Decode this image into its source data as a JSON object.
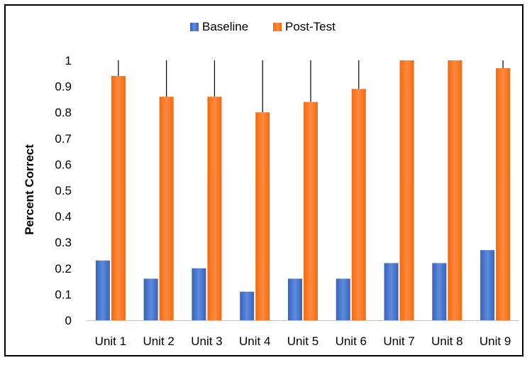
{
  "chart_data": {
    "type": "bar",
    "title": "",
    "xlabel": "",
    "ylabel": "Percent Correct",
    "ylim": [
      0,
      1
    ],
    "yticks": [
      "0",
      "0.1",
      "0.2",
      "0.3",
      "0.4",
      "0.5",
      "0.6",
      "0.7",
      "0.8",
      "0.9",
      "1"
    ],
    "grid": false,
    "legend_position": "top-center",
    "categories": [
      "Unit 1",
      "Unit 2",
      "Unit 3",
      "Unit 4",
      "Unit 5",
      "Unit 6",
      "Unit 7",
      "Unit 8",
      "Unit 9"
    ],
    "series": [
      {
        "name": "Baseline",
        "color": "#4472C4",
        "values": [
          0.23,
          0.16,
          0.2,
          0.11,
          0.16,
          0.16,
          0.22,
          0.22,
          0.27
        ]
      },
      {
        "name": "Post-Test",
        "color": "#FF6F14",
        "values": [
          0.94,
          0.86,
          0.86,
          0.8,
          0.84,
          0.89,
          1.0,
          1.0,
          0.97
        ],
        "error_upper": [
          1,
          1,
          1,
          1,
          1,
          1,
          1,
          1,
          1
        ]
      }
    ]
  }
}
